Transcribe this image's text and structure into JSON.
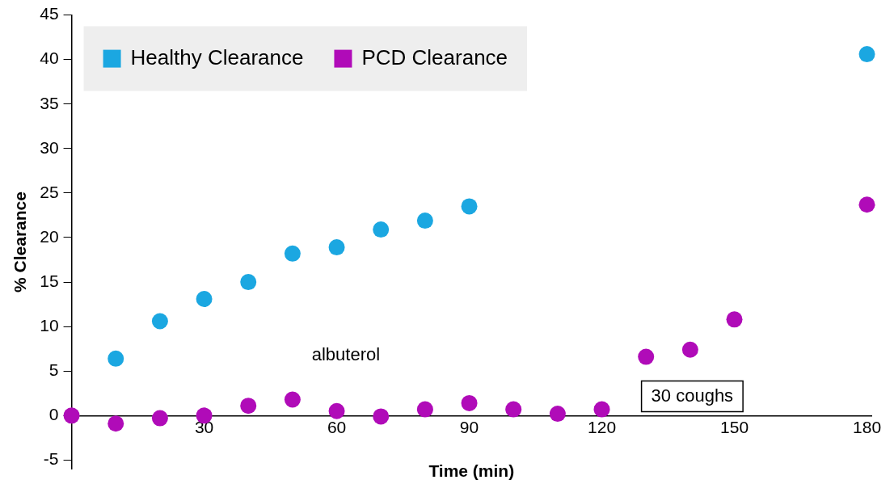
{
  "chart_data": {
    "type": "scatter",
    "xlabel": "Time (min)",
    "ylabel": "% Clearance",
    "xlim": [
      0,
      181
    ],
    "xticks": [
      30,
      60,
      90,
      120,
      150,
      180
    ],
    "ylim": [
      -6,
      45
    ],
    "yticks": [
      -5,
      0,
      5,
      10,
      15,
      20,
      25,
      30,
      35,
      40,
      45
    ],
    "grid": false,
    "legend": "top left",
    "marker": "circle",
    "series": [
      {
        "name": "Healthy Clearance",
        "color": "#1ba7e1",
        "x": [
          10,
          20,
          30,
          40,
          50,
          60,
          70,
          80,
          90,
          180
        ],
        "values": [
          6.4,
          10.6,
          13.1,
          15.0,
          18.2,
          18.9,
          20.9,
          21.9,
          23.5,
          40.6
        ]
      },
      {
        "name": "PCD Clearance",
        "color": "#b00bb8",
        "x": [
          0,
          10,
          20,
          30,
          40,
          50,
          60,
          70,
          80,
          90,
          100,
          110,
          120,
          130,
          140,
          150,
          180
        ],
        "values": [
          0,
          -0.9,
          -0.3,
          0,
          1.1,
          1.8,
          0.5,
          -0.1,
          0.7,
          1.4,
          0.7,
          0.2,
          0.7,
          6.6,
          7.4,
          10.8,
          23.7
        ]
      }
    ],
    "annotations": [
      "albuterol",
      "30 coughs"
    ]
  }
}
